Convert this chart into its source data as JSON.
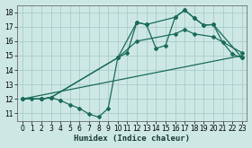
{
  "xlabel": "Humidex (Indice chaleur)",
  "xlim": [
    -0.5,
    23.5
  ],
  "ylim": [
    10.5,
    18.5
  ],
  "yticks": [
    11,
    12,
    13,
    14,
    15,
    16,
    17,
    18
  ],
  "xticks": [
    0,
    1,
    2,
    3,
    4,
    5,
    6,
    7,
    8,
    9,
    10,
    11,
    12,
    13,
    14,
    15,
    16,
    17,
    18,
    19,
    20,
    21,
    22,
    23
  ],
  "bg_color": "#cde8e4",
  "grid_color": "#a8ccc8",
  "line_color": "#1a6b5a",
  "line1_x": [
    0,
    1,
    2,
    3,
    4,
    5,
    6,
    7,
    8,
    9,
    10,
    11,
    12,
    13,
    14,
    15,
    16,
    17,
    18,
    19,
    20,
    21,
    22,
    23
  ],
  "line1_y": [
    12.0,
    12.0,
    12.0,
    12.1,
    11.9,
    11.6,
    11.35,
    10.95,
    10.75,
    11.35,
    14.85,
    15.2,
    17.3,
    17.15,
    15.5,
    15.7,
    17.65,
    18.15,
    17.6,
    17.1,
    17.15,
    15.9,
    15.1,
    14.85
  ],
  "line2_x": [
    0,
    2,
    3,
    10,
    12,
    13,
    16,
    17,
    18,
    19,
    20,
    23
  ],
  "line2_y": [
    12.0,
    12.0,
    12.1,
    14.85,
    17.3,
    17.15,
    17.65,
    18.15,
    17.6,
    17.1,
    17.15,
    14.85
  ],
  "line3_x": [
    0,
    2,
    3,
    10,
    12,
    16,
    17,
    18,
    20,
    23
  ],
  "line3_y": [
    12.0,
    12.0,
    12.1,
    14.85,
    16.0,
    16.5,
    16.8,
    16.5,
    16.3,
    15.2
  ],
  "line4_x": [
    0,
    23
  ],
  "line4_y": [
    12.0,
    15.0
  ]
}
